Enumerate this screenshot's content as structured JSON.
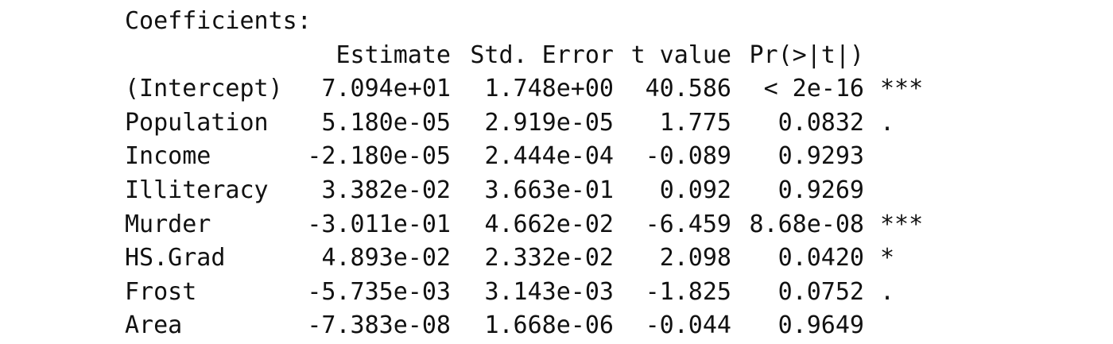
{
  "title": "Coefficients:",
  "headers": {
    "name": "",
    "estimate": "Estimate",
    "std_error": "Std. Error",
    "t_value": "t value",
    "p_value": "Pr(>|t|)",
    "signif": ""
  },
  "rows": [
    {
      "name": "(Intercept)",
      "estimate": "7.094e+01",
      "std_error": "1.748e+00",
      "t_value": "40.586",
      "p_value": "< 2e-16",
      "signif": "***"
    },
    {
      "name": "Population",
      "estimate": "5.180e-05",
      "std_error": "2.919e-05",
      "t_value": "1.775",
      "p_value": "0.0832",
      "signif": "."
    },
    {
      "name": "Income",
      "estimate": "-2.180e-05",
      "std_error": "2.444e-04",
      "t_value": "-0.089",
      "p_value": "0.9293",
      "signif": ""
    },
    {
      "name": "Illiteracy",
      "estimate": "3.382e-02",
      "std_error": "3.663e-01",
      "t_value": "0.092",
      "p_value": "0.9269",
      "signif": ""
    },
    {
      "name": "Murder",
      "estimate": "-3.011e-01",
      "std_error": "4.662e-02",
      "t_value": "-6.459",
      "p_value": "8.68e-08",
      "signif": "***"
    },
    {
      "name": "HS.Grad",
      "estimate": "4.893e-02",
      "std_error": "2.332e-02",
      "t_value": "2.098",
      "p_value": "0.0420",
      "signif": "*"
    },
    {
      "name": "Frost",
      "estimate": "-5.735e-03",
      "std_error": "3.143e-03",
      "t_value": "-1.825",
      "p_value": "0.0752",
      "signif": "."
    },
    {
      "name": "Area",
      "estimate": "-7.383e-08",
      "std_error": "1.668e-06",
      "t_value": "-0.044",
      "p_value": "0.9649",
      "signif": ""
    }
  ]
}
